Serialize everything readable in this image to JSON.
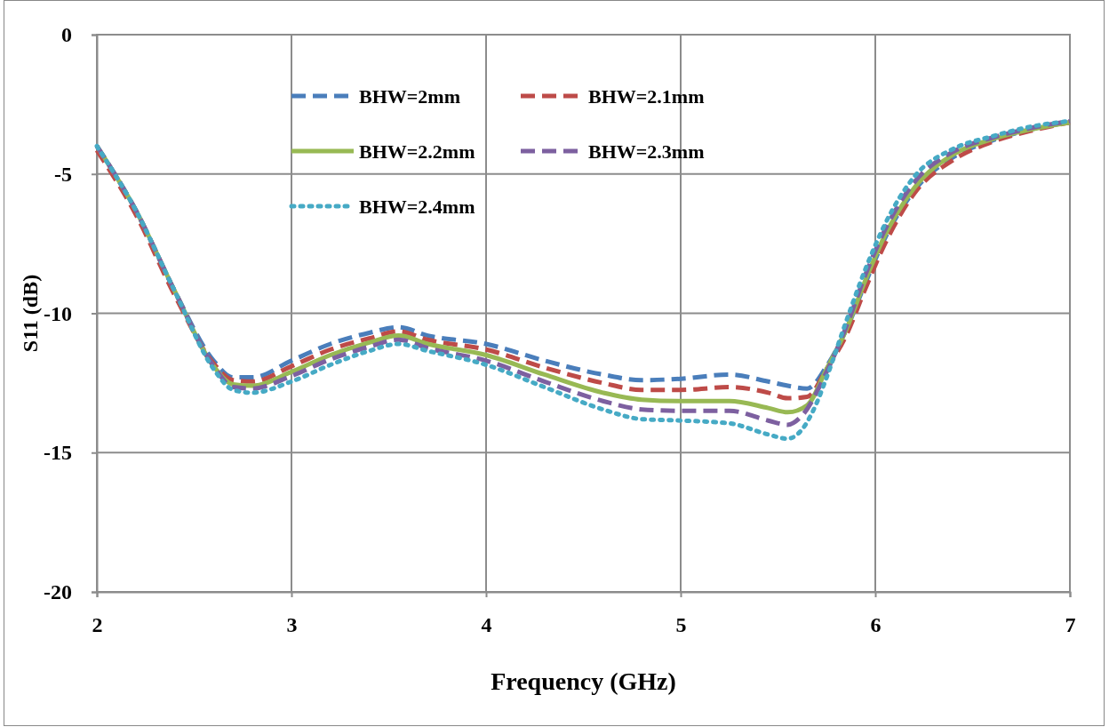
{
  "chart_data": {
    "type": "line",
    "xlabel": "Frequency (GHz)",
    "ylabel": "S11 (dB)",
    "xlim": [
      2,
      7
    ],
    "xticks": [
      2,
      3,
      4,
      5,
      6,
      7
    ],
    "ylim": [
      -20,
      0
    ],
    "yticks": [
      -20,
      -15,
      -10,
      -5,
      0
    ],
    "grid": true,
    "legend": "top",
    "marker": "none",
    "series": [
      {
        "name": "BHW=2mm",
        "color": "#4a7ebb",
        "line_style": "dashed",
        "x": [
          2,
          2.2,
          2.4,
          2.6,
          2.7,
          2.8,
          3.0,
          3.2,
          3.4,
          3.55,
          3.7,
          4.0,
          4.3,
          4.6,
          4.8,
          5.0,
          5.25,
          5.45,
          5.55,
          5.65,
          5.75,
          5.85,
          5.95,
          6.05,
          6.2,
          6.4,
          6.6,
          6.8,
          7.0
        ],
        "values": [
          -4.0,
          -6.3,
          -9.2,
          -11.7,
          -12.3,
          -12.3,
          -11.7,
          -11.1,
          -10.7,
          -10.5,
          -10.8,
          -11.1,
          -11.7,
          -12.2,
          -12.4,
          -12.35,
          -12.2,
          -12.45,
          -12.6,
          -12.7,
          -11.9,
          -10.6,
          -8.9,
          -7.3,
          -5.6,
          -4.4,
          -3.8,
          -3.4,
          -3.15
        ]
      },
      {
        "name": "BHW=2.1mm",
        "color": "#be4b48",
        "line_style": "dashed",
        "x": [
          2,
          2.2,
          2.4,
          2.6,
          2.7,
          2.8,
          3.0,
          3.2,
          3.4,
          3.55,
          3.7,
          4.0,
          4.3,
          4.6,
          4.8,
          5.0,
          5.25,
          5.45,
          5.55,
          5.65,
          5.75,
          5.85,
          5.95,
          6.05,
          6.2,
          6.4,
          6.6,
          6.8,
          7.0
        ],
        "values": [
          -4.15,
          -6.45,
          -9.35,
          -11.8,
          -12.4,
          -12.45,
          -11.9,
          -11.3,
          -10.9,
          -10.65,
          -10.95,
          -11.3,
          -11.95,
          -12.5,
          -12.75,
          -12.75,
          -12.65,
          -12.85,
          -13.05,
          -13.0,
          -12.0,
          -10.8,
          -9.1,
          -7.5,
          -5.7,
          -4.5,
          -3.85,
          -3.45,
          -3.15
        ]
      },
      {
        "name": "BHW=2.2mm",
        "color": "#98b954",
        "line_style": "solid",
        "x": [
          2,
          2.2,
          2.4,
          2.6,
          2.7,
          2.8,
          3.0,
          3.2,
          3.4,
          3.55,
          3.7,
          4.0,
          4.3,
          4.6,
          4.8,
          5.0,
          5.25,
          5.45,
          5.55,
          5.65,
          5.75,
          5.85,
          5.95,
          6.05,
          6.2,
          6.4,
          6.6,
          6.8,
          7.0
        ],
        "values": [
          -4.0,
          -6.3,
          -9.2,
          -11.9,
          -12.55,
          -12.6,
          -12.1,
          -11.5,
          -11.05,
          -10.8,
          -11.1,
          -11.5,
          -12.2,
          -12.85,
          -13.1,
          -13.15,
          -13.15,
          -13.4,
          -13.55,
          -13.3,
          -12.0,
          -10.6,
          -8.8,
          -7.2,
          -5.5,
          -4.3,
          -3.75,
          -3.4,
          -3.15
        ]
      },
      {
        "name": "BHW=2.3mm",
        "color": "#7d60a0",
        "line_style": "dashed",
        "x": [
          2,
          2.2,
          2.4,
          2.6,
          2.7,
          2.8,
          3.0,
          3.2,
          3.4,
          3.55,
          3.7,
          4.0,
          4.3,
          4.6,
          4.8,
          5.0,
          5.25,
          5.45,
          5.55,
          5.62,
          5.75,
          5.85,
          5.95,
          6.05,
          6.2,
          6.4,
          6.6,
          6.8,
          7.0
        ],
        "values": [
          -4.0,
          -6.3,
          -9.2,
          -11.9,
          -12.65,
          -12.7,
          -12.25,
          -11.65,
          -11.2,
          -10.95,
          -11.25,
          -11.7,
          -12.45,
          -13.15,
          -13.45,
          -13.5,
          -13.5,
          -13.85,
          -14.0,
          -13.7,
          -12.1,
          -10.5,
          -8.6,
          -7.0,
          -5.3,
          -4.2,
          -3.7,
          -3.35,
          -3.1
        ]
      },
      {
        "name": "BHW=2.4mm",
        "color": "#46aac5",
        "line_style": "dotted",
        "x": [
          2,
          2.2,
          2.4,
          2.6,
          2.7,
          2.8,
          3.0,
          3.2,
          3.4,
          3.55,
          3.7,
          4.0,
          4.3,
          4.6,
          4.8,
          5.0,
          5.25,
          5.45,
          5.55,
          5.62,
          5.7,
          5.75,
          5.85,
          5.95,
          6.05,
          6.2,
          6.4,
          6.6,
          6.8,
          7.0
        ],
        "values": [
          -4.0,
          -6.3,
          -9.2,
          -12.0,
          -12.75,
          -12.85,
          -12.45,
          -11.85,
          -11.35,
          -11.1,
          -11.35,
          -11.85,
          -12.65,
          -13.45,
          -13.8,
          -13.85,
          -13.95,
          -14.35,
          -14.5,
          -14.2,
          -13.2,
          -12.3,
          -10.3,
          -8.4,
          -6.8,
          -5.1,
          -4.1,
          -3.65,
          -3.3,
          -3.1
        ]
      }
    ]
  }
}
